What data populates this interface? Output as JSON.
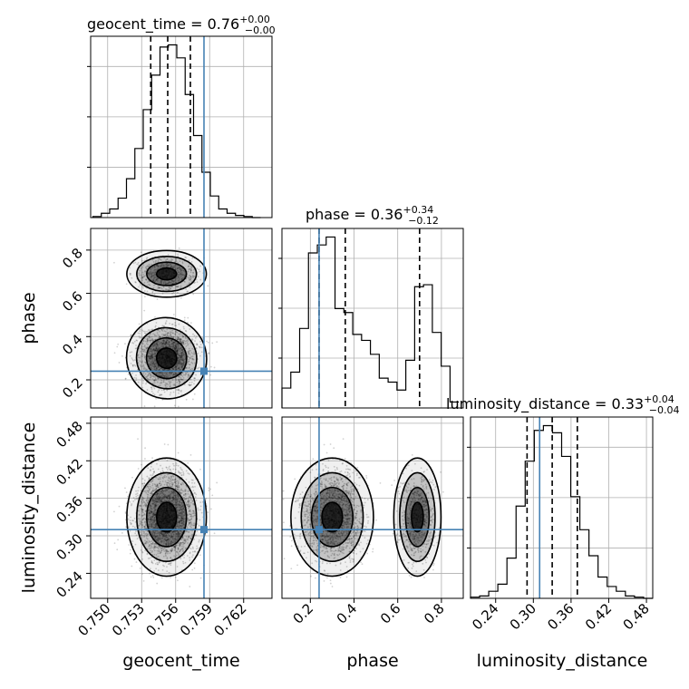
{
  "chart_data": {
    "type": "corner",
    "parameters": [
      "geocent_time",
      "phase",
      "luminosity_distance"
    ],
    "truths": {
      "geocent_time": 0.7585,
      "phase": 0.24,
      "luminosity_distance": 0.31
    },
    "titles": [
      {
        "name": "geocent_time",
        "median": "0.76",
        "plus": "+0.00",
        "minus": "−0.00"
      },
      {
        "name": "phase",
        "median": "0.36",
        "plus": "+0.34",
        "minus": "−0.12"
      },
      {
        "name": "luminosity_distance",
        "median": "0.33",
        "plus": "+0.04",
        "minus": "−0.04"
      }
    ],
    "axes": {
      "geocent_time": {
        "range": [
          0.7485,
          0.7645
        ],
        "ticks": [
          "0.750",
          "0.753",
          "0.756",
          "0.759",
          "0.762"
        ],
        "tick_values": [
          0.75,
          0.753,
          0.756,
          0.759,
          0.762
        ]
      },
      "phase": {
        "range": [
          0.07,
          0.9
        ],
        "ticks": [
          "0.2",
          "0.4",
          "0.6",
          "0.8"
        ],
        "tick_values": [
          0.2,
          0.4,
          0.6,
          0.8
        ]
      },
      "luminosity_distance": {
        "range": [
          0.2,
          0.49
        ],
        "ticks": [
          "0.24",
          "0.30",
          "0.36",
          "0.42",
          "0.48"
        ],
        "tick_values": [
          0.24,
          0.3,
          0.36,
          0.42,
          0.48
        ]
      }
    },
    "quantiles": {
      "geocent_time": [
        0.7538,
        0.7553,
        0.7573
      ],
      "phase": [
        0.24,
        0.36,
        0.7
      ],
      "luminosity_distance": [
        0.29,
        0.33,
        0.37
      ]
    },
    "histograms": {
      "geocent_time": [
        0.5,
        2,
        4,
        9,
        18,
        32,
        50,
        66,
        79,
        80,
        74,
        57,
        38,
        21,
        10,
        4,
        2,
        1,
        0.5,
        0
      ],
      "phase": [
        10,
        18,
        40,
        78,
        82,
        86,
        50,
        48,
        37,
        34,
        27,
        15,
        13,
        9,
        24,
        61,
        62,
        38,
        21,
        3
      ],
      "luminosity_distance": [
        0.5,
        1,
        3,
        6,
        17,
        39,
        58,
        71,
        73,
        70,
        60,
        43,
        29,
        18,
        9,
        5,
        3,
        1,
        0.5,
        0
      ]
    },
    "grid": true,
    "truth_color": "#4682b4"
  }
}
